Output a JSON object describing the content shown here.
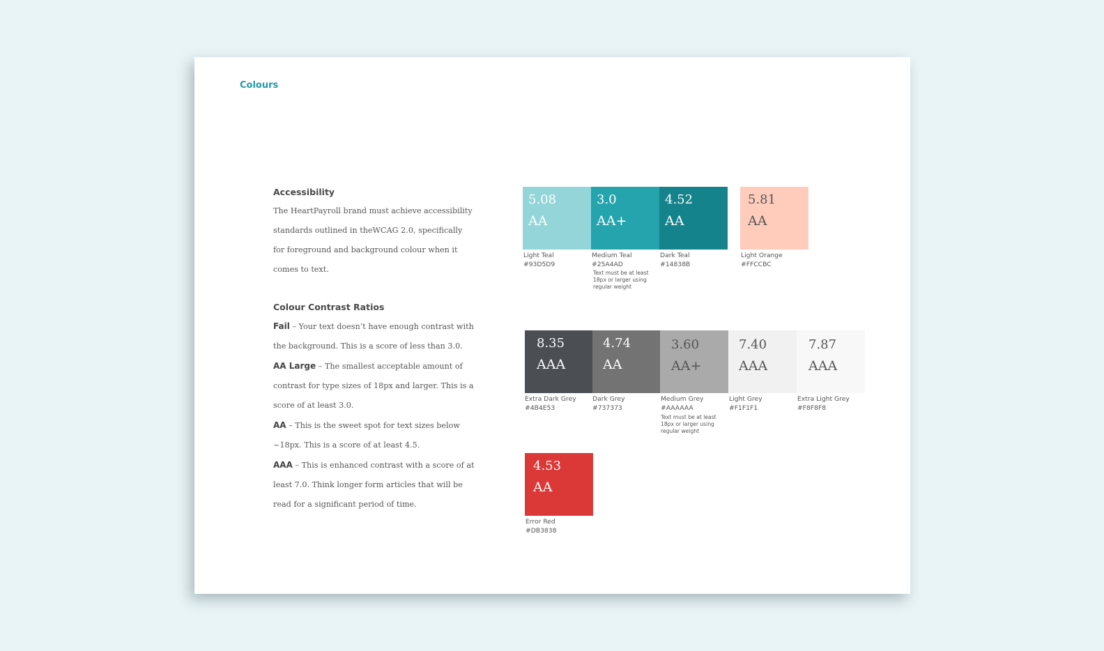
{
  "section_label": "Colours",
  "accessibility": {
    "heading": "Accessibility",
    "body": "The HeartPayroll brand must achieve accessibility standards outlined in theWCAG 2.0, specifically for foreground and background colour when it comes to text."
  },
  "contrast": {
    "heading": "Colour Contrast Ratios",
    "items": [
      {
        "term": "Fail",
        "text": " – Your text doesn’t have enough contrast with the background. This is a score of less than 3.0."
      },
      {
        "term": "AA Large",
        "text": " – The smallest acceptable amount of contrast for type sizes of 18px and larger. This is a score of at least 3.0."
      },
      {
        "term": "AA",
        "text": " – This is the sweet spot for text sizes below ~18px. This is a score of at least 4.5."
      },
      {
        "term": "AAA",
        "text": " – This is enhanced contrast with a score of at least 7.0. Think longer form articles that will be read for a significant period of time."
      }
    ]
  },
  "swatches": [
    {
      "ratio": "5.08",
      "grade": "AA",
      "name": "Light Teal",
      "hex": "#93D5D9",
      "bg": "#93D5D9",
      "fg": "#ffffff"
    },
    {
      "ratio": "3.0",
      "grade": "AA+",
      "name": "Medium Teal",
      "hex": "#25A4AD",
      "bg": "#25A4AD",
      "fg": "#ffffff",
      "note": "Text must be at least 18px or larger using regular weight"
    },
    {
      "ratio": "4.52",
      "grade": "AA",
      "name": "Dark Teal",
      "hex": "#14838B",
      "bg": "#14838B",
      "fg": "#ffffff"
    },
    {
      "ratio": "5.81",
      "grade": "AA",
      "name": "Light Orange",
      "hex": "#FFCCBC",
      "bg": "#FFCCBC",
      "fg": "#555555"
    },
    {
      "ratio": "8.35",
      "grade": "AAA",
      "name": "Extra Dark Grey",
      "hex": "#4B4E53",
      "bg": "#4B4E53",
      "fg": "#ffffff"
    },
    {
      "ratio": "4.74",
      "grade": "AA",
      "name": "Dark Grey",
      "hex": "#737373",
      "bg": "#737373",
      "fg": "#ffffff"
    },
    {
      "ratio": "3.60",
      "grade": "AA+",
      "name": "Medium Grey",
      "hex": "#AAAAAA",
      "bg": "#AAAAAA",
      "fg": "#555555",
      "note": "Text must be at least 18px or larger using regular weight"
    },
    {
      "ratio": "7.40",
      "grade": "AAA",
      "name": "Light Grey",
      "hex": "#F1F1F1",
      "bg": "#F1F1F1",
      "fg": "#555555"
    },
    {
      "ratio": "7.87",
      "grade": "AAA",
      "name": "Extra Light Grey",
      "hex": "#F8F8F8",
      "bg": "#F8F8F8",
      "fg": "#555555"
    },
    {
      "ratio": "4.53",
      "grade": "AA",
      "name": "Error Red",
      "hex": "#DB3838",
      "bg": "#DB3838",
      "fg": "#ffffff"
    }
  ]
}
